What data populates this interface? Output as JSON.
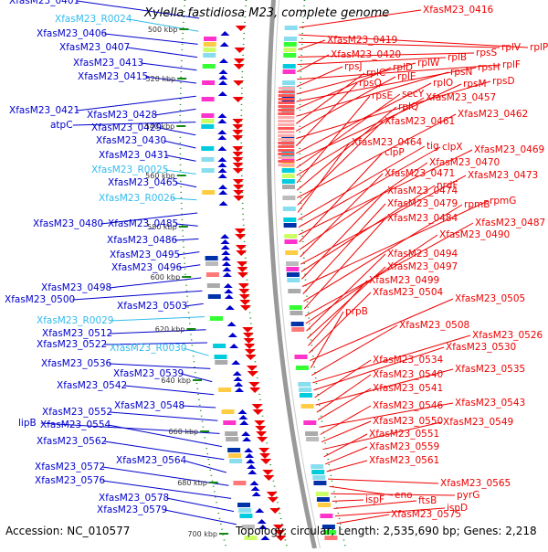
{
  "title": "Xylella fastidiosa M23, complete genome",
  "footer": {
    "accession": "Accession: NC_010577",
    "summary": "Topology: circular; Length: 2,535,690 bp; Genes: 2,218"
  },
  "colors": {
    "forward_genes": "#0000cc",
    "rna_genes": "#33bbee",
    "reverse_genes": "#ee0000",
    "backbone": "#999999",
    "tick": "#118811"
  },
  "scale_ticks": [
    {
      "label": "500 kbp"
    },
    {
      "label": "520 kbp"
    },
    {
      "label": "540 kbp"
    },
    {
      "label": "560 kbp"
    },
    {
      "label": "580 kbp"
    },
    {
      "label": "600 kbp"
    },
    {
      "label": "620 kbp"
    },
    {
      "label": "640 kbp"
    },
    {
      "label": "660 kbp"
    },
    {
      "label": "680 kbp"
    },
    {
      "label": "700 kbp"
    }
  ],
  "left_labels": [
    {
      "text": "XfasM23_0401",
      "kind": "gene"
    },
    {
      "text": "XfasM23_R0024",
      "kind": "rna"
    },
    {
      "text": "XfasM23_0406",
      "kind": "gene"
    },
    {
      "text": "XfasM23_0407",
      "kind": "gene"
    },
    {
      "text": "XfasM23_0413",
      "kind": "gene"
    },
    {
      "text": "XfasM23_0415",
      "kind": "gene"
    },
    {
      "text": "XfasM23_0421",
      "kind": "gene"
    },
    {
      "text": "XfasM23_0428",
      "kind": "gene"
    },
    {
      "text": "atpC",
      "kind": "gene"
    },
    {
      "text": "XfasM23_0429",
      "kind": "gene"
    },
    {
      "text": "XfasM23_0430",
      "kind": "gene"
    },
    {
      "text": "XfasM23_0431",
      "kind": "gene"
    },
    {
      "text": "XfasM23_R0025",
      "kind": "rna"
    },
    {
      "text": "XfasM23_0465",
      "kind": "gene"
    },
    {
      "text": "XfasM23_R0026",
      "kind": "rna"
    },
    {
      "text": "XfasM23_0480",
      "kind": "gene"
    },
    {
      "text": "XfasM23_0485",
      "kind": "gene"
    },
    {
      "text": "XfasM23_0486",
      "kind": "gene"
    },
    {
      "text": "XfasM23_0495",
      "kind": "gene"
    },
    {
      "text": "XfasM23_0496",
      "kind": "gene"
    },
    {
      "text": "XfasM23_0498",
      "kind": "gene"
    },
    {
      "text": "XfasM23_0500",
      "kind": "gene"
    },
    {
      "text": "XfasM23_0503",
      "kind": "gene"
    },
    {
      "text": "XfasM23_R0029",
      "kind": "rna"
    },
    {
      "text": "XfasM23_0512",
      "kind": "gene"
    },
    {
      "text": "XfasM23_0522",
      "kind": "gene"
    },
    {
      "text": "XfasM23_R0030",
      "kind": "rna"
    },
    {
      "text": "XfasM23_0536",
      "kind": "gene"
    },
    {
      "text": "XfasM23_0539",
      "kind": "gene"
    },
    {
      "text": "XfasM23_0542",
      "kind": "gene"
    },
    {
      "text": "XfasM23_0548",
      "kind": "gene"
    },
    {
      "text": "XfasM23_0552",
      "kind": "gene"
    },
    {
      "text": "lipB",
      "kind": "gene"
    },
    {
      "text": "XfasM23_0554",
      "kind": "gene"
    },
    {
      "text": "XfasM23_0562",
      "kind": "gene"
    },
    {
      "text": "XfasM23_0564",
      "kind": "gene"
    },
    {
      "text": "XfasM23_0572",
      "kind": "gene"
    },
    {
      "text": "XfasM23_0576",
      "kind": "gene"
    },
    {
      "text": "XfasM23_0578",
      "kind": "gene"
    },
    {
      "text": "XfasM23_0579",
      "kind": "gene"
    }
  ],
  "right_labels": [
    {
      "text": "XfasM23_0416"
    },
    {
      "text": "rplP"
    },
    {
      "text": "rplV"
    },
    {
      "text": "XfasM23_0419"
    },
    {
      "text": "rpsS"
    },
    {
      "text": "rplB"
    },
    {
      "text": "XfasM23_0420"
    },
    {
      "text": "rplF"
    },
    {
      "text": "rpsJ"
    },
    {
      "text": "rplW"
    },
    {
      "text": "rpsH"
    },
    {
      "text": "rplD"
    },
    {
      "text": "rpsN"
    },
    {
      "text": "rplC"
    },
    {
      "text": "rplE"
    },
    {
      "text": "rpsD"
    },
    {
      "text": "rpsQ"
    },
    {
      "text": "rplO"
    },
    {
      "text": "rpsM"
    },
    {
      "text": "secY"
    },
    {
      "text": "XfasM23_0457"
    },
    {
      "text": "rpsE"
    },
    {
      "text": "rplQ"
    },
    {
      "text": "XfasM23_0462"
    },
    {
      "text": "XfasM23_0461"
    },
    {
      "text": "XfasM23_0464"
    },
    {
      "text": "tig"
    },
    {
      "text": "clpX"
    },
    {
      "text": "XfasM23_0469"
    },
    {
      "text": "clpP"
    },
    {
      "text": "XfasM23_0470"
    },
    {
      "text": "XfasM23_0471"
    },
    {
      "text": "XfasM23_0473"
    },
    {
      "text": "nrdF"
    },
    {
      "text": "XfasM23_0474"
    },
    {
      "text": "rpmG"
    },
    {
      "text": "XfasM23_0479"
    },
    {
      "text": "rpmB"
    },
    {
      "text": "XfasM23_0484"
    },
    {
      "text": "XfasM23_0487"
    },
    {
      "text": "XfasM23_0490"
    },
    {
      "text": "XfasM23_0494"
    },
    {
      "text": "XfasM23_0497"
    },
    {
      "text": "XfasM23_0499"
    },
    {
      "text": "XfasM23_0504"
    },
    {
      "text": "XfasM23_0505"
    },
    {
      "text": "prpB"
    },
    {
      "text": "XfasM23_0508"
    },
    {
      "text": "XfasM23_0526"
    },
    {
      "text": "XfasM23_0530"
    },
    {
      "text": "XfasM23_0534"
    },
    {
      "text": "XfasM23_0535"
    },
    {
      "text": "XfasM23_0540"
    },
    {
      "text": "XfasM23_0541"
    },
    {
      "text": "XfasM23_0543"
    },
    {
      "text": "XfasM23_0546"
    },
    {
      "text": "XfasM23_0550"
    },
    {
      "text": "XfasM23_0549"
    },
    {
      "text": "XfasM23_0551"
    },
    {
      "text": "XfasM23_0559"
    },
    {
      "text": "XfasM23_0561"
    },
    {
      "text": "XfasM23_0565"
    },
    {
      "text": "eno"
    },
    {
      "text": "pyrG"
    },
    {
      "text": "ispF"
    },
    {
      "text": "ftsB"
    },
    {
      "text": "ispD"
    },
    {
      "text": "XfasM23_0575"
    }
  ]
}
